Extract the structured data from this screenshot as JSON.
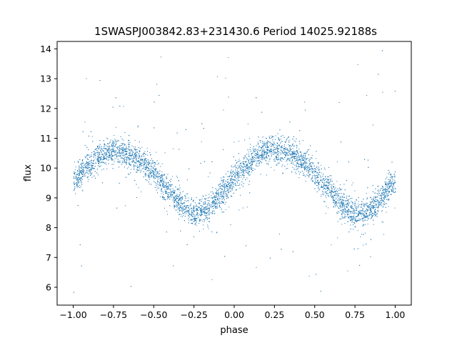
{
  "chart_data": {
    "type": "scatter",
    "title": "1SWASPJ003842.83+231430.6 Period 14025.92188s",
    "xlabel": "phase",
    "ylabel": "flux",
    "xlim": [
      -1.1,
      1.1
    ],
    "ylim": [
      5.4,
      14.25
    ],
    "grid": false,
    "legend": "none",
    "marker_color": "#1f77b4",
    "x_ticks": [
      -1.0,
      -0.75,
      -0.5,
      -0.25,
      0.0,
      0.25,
      0.5,
      0.75,
      1.0
    ],
    "x_tick_labels": [
      "−1.00",
      "−0.75",
      "−0.50",
      "−0.25",
      "0.00",
      "0.25",
      "0.50",
      "0.75",
      "1.00"
    ],
    "y_ticks": [
      6,
      7,
      8,
      9,
      10,
      11,
      12,
      13,
      14
    ],
    "y_tick_labels": [
      "6",
      "7",
      "8",
      "9",
      "10",
      "11",
      "12",
      "13",
      "14"
    ],
    "series": [
      {
        "x": [
          -1.0,
          -0.95,
          -0.9,
          -0.85,
          -0.8,
          -0.75,
          -0.7,
          -0.65,
          -0.6,
          -0.55,
          -0.5,
          -0.45,
          -0.4,
          -0.35,
          -0.3,
          -0.25,
          -0.2,
          -0.15,
          -0.1,
          -0.05,
          0.0,
          0.05,
          0.1,
          0.15,
          0.2,
          0.25,
          0.3,
          0.35,
          0.4,
          0.45,
          0.5,
          0.55,
          0.6,
          0.65,
          0.7,
          0.75,
          0.8,
          0.85,
          0.9,
          0.95,
          1.0
        ],
        "y": [
          9.6,
          9.9,
          10.1,
          10.35,
          10.5,
          10.6,
          10.55,
          10.45,
          10.3,
          10.1,
          9.8,
          9.5,
          9.2,
          8.9,
          8.65,
          8.5,
          8.55,
          8.75,
          9.0,
          9.35,
          9.7,
          10.0,
          10.2,
          10.45,
          10.6,
          10.65,
          10.6,
          10.5,
          10.3,
          10.1,
          9.8,
          9.5,
          9.2,
          8.9,
          8.6,
          8.45,
          8.5,
          8.65,
          8.95,
          9.3,
          9.6
        ],
        "band_half_width": 0.5,
        "outlier_range": [
          5.8,
          14.0
        ]
      }
    ]
  }
}
